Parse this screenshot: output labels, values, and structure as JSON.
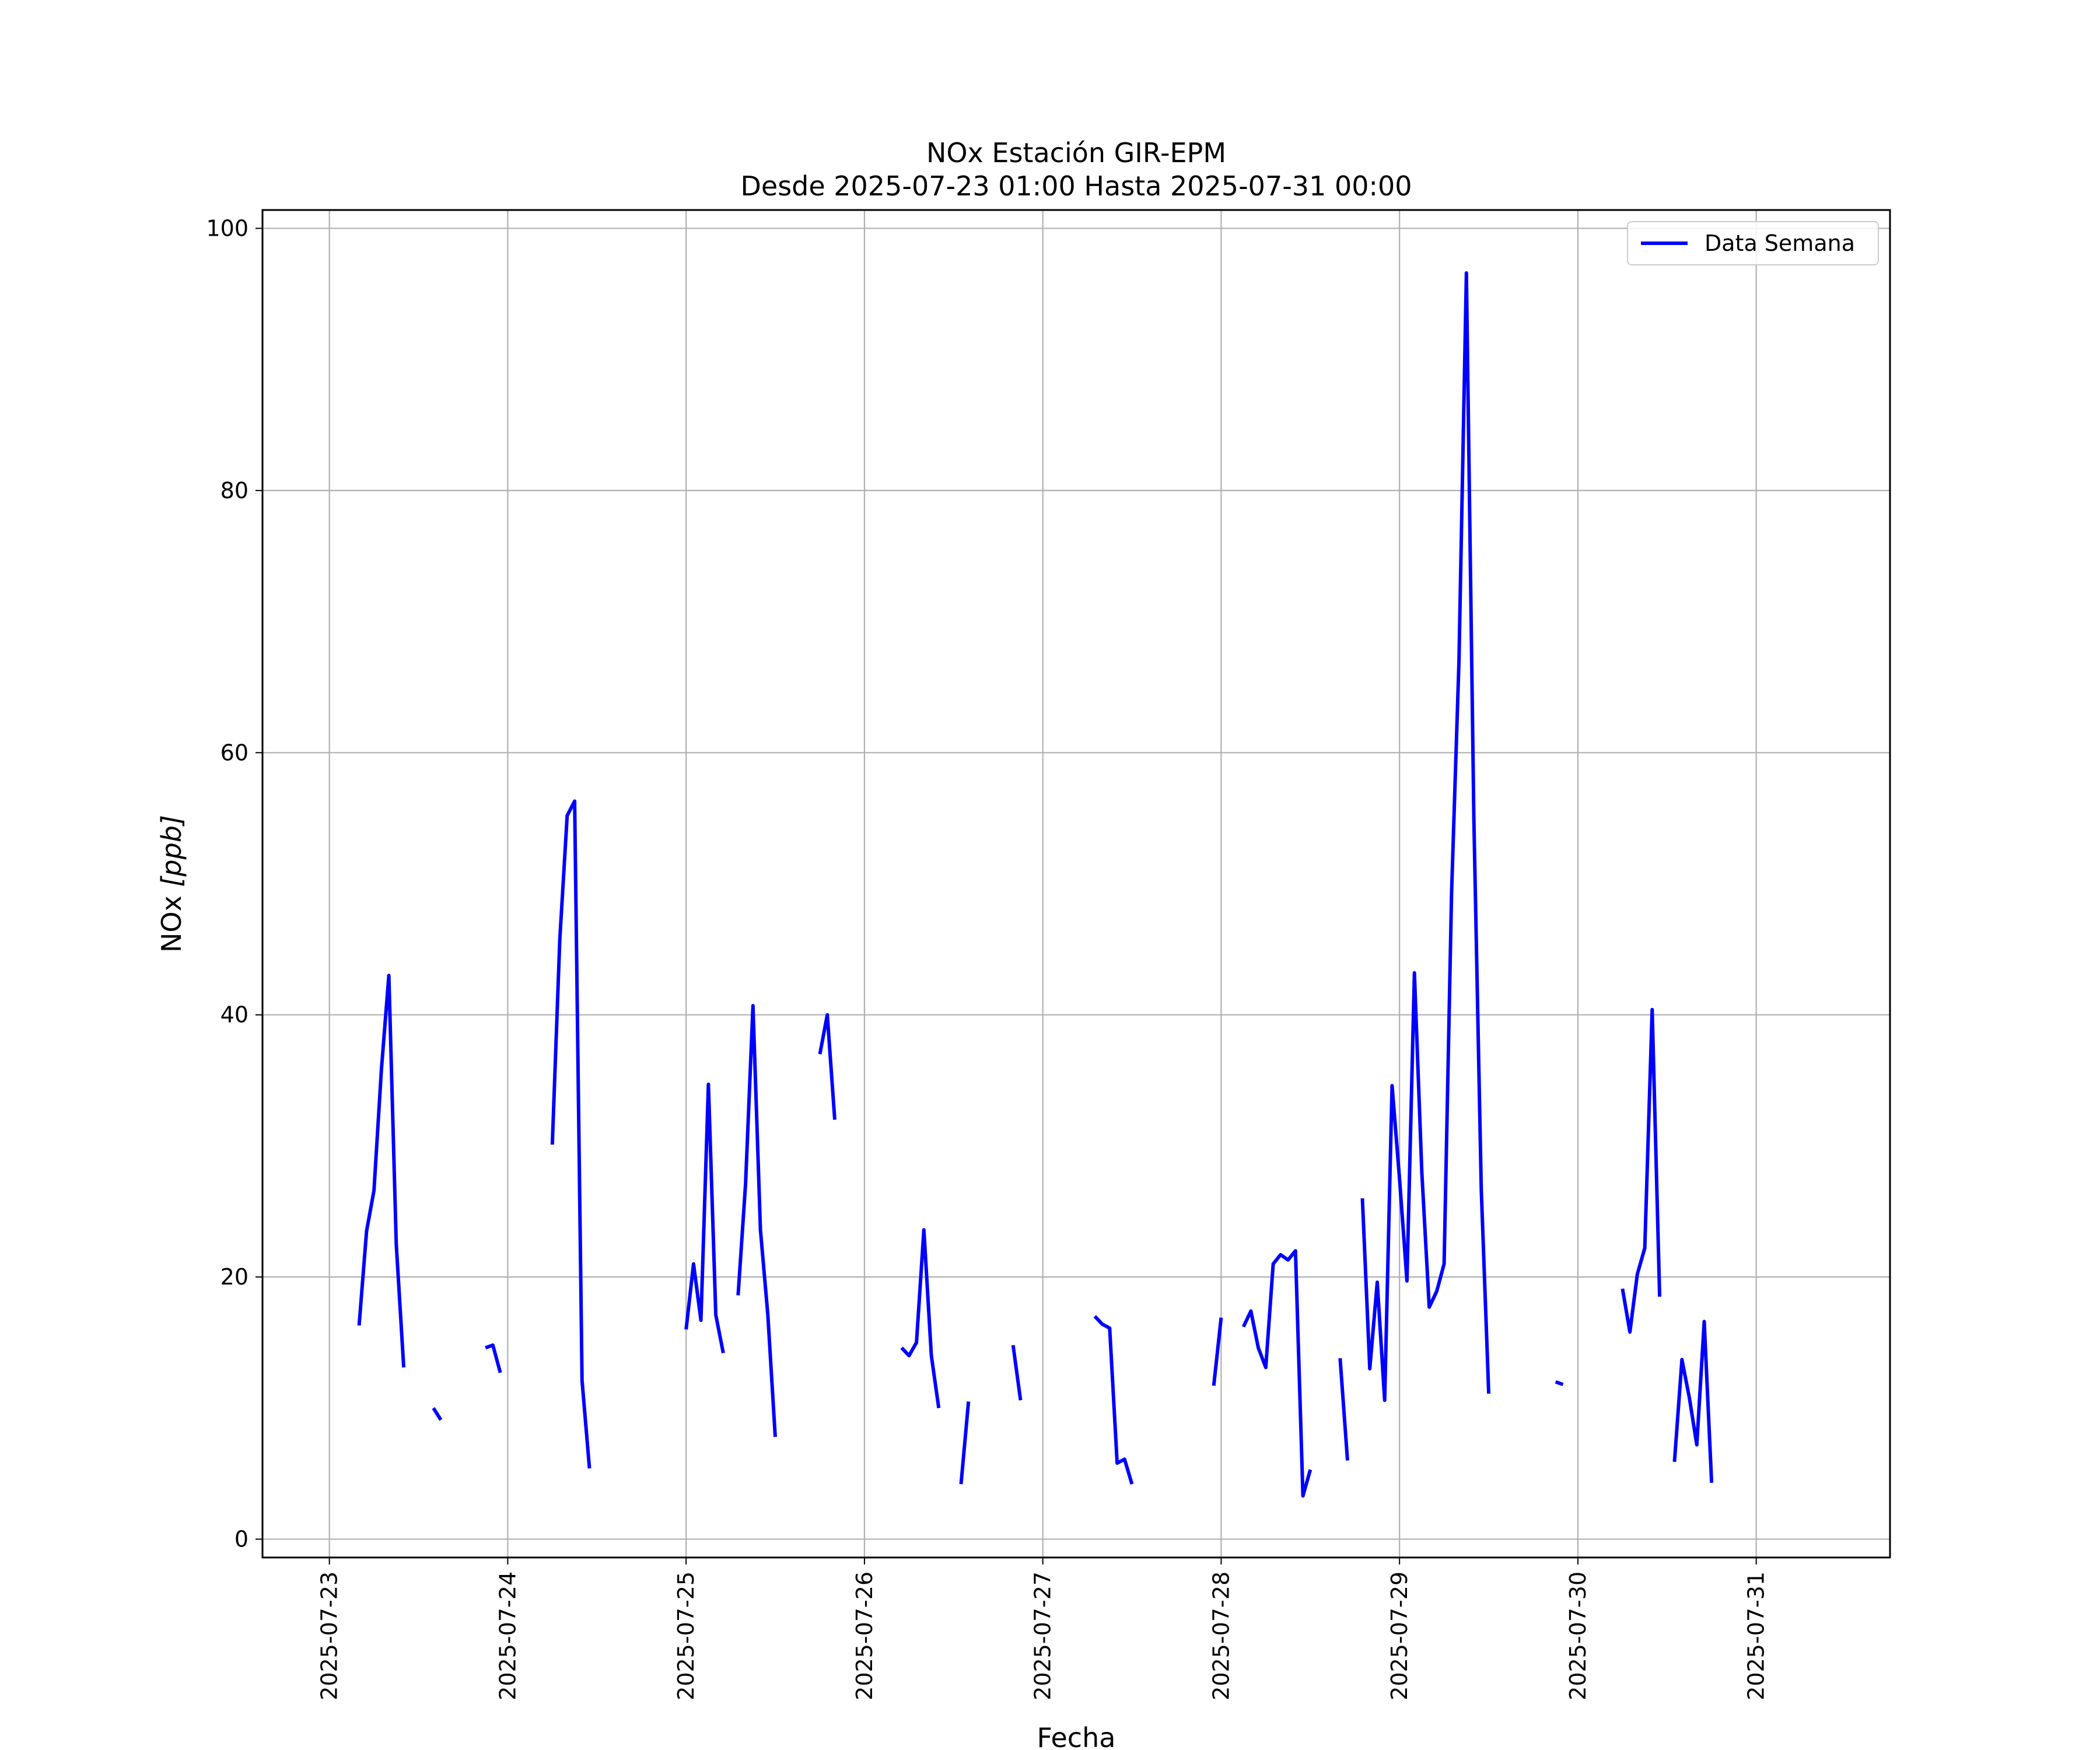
{
  "chart_data": {
    "type": "line",
    "title": "NOx Estación GIR-EPM",
    "subtitle": "Desde 2025-07-23 01:00 Hasta 2025-07-31 00:00",
    "xlabel": "Fecha",
    "ylabel": "NOx [ppb]",
    "ylabel_main": "NOx ",
    "ylabel_unit": "[ppb]",
    "x_axis": "date",
    "xlim": [
      "2025-07-22 15:00",
      "2025-07-31 18:00"
    ],
    "ylim": [
      -1.4,
      101.4
    ],
    "x_ticks": [
      "2025-07-23",
      "2025-07-24",
      "2025-07-25",
      "2025-07-26",
      "2025-07-27",
      "2025-07-28",
      "2025-07-29",
      "2025-07-30",
      "2025-07-31"
    ],
    "y_ticks": [
      "0",
      "20",
      "40",
      "60",
      "80",
      "100"
    ],
    "grid": true,
    "legend_position": "upper right",
    "series": [
      {
        "name": "Data Semana",
        "color": "#0000ff",
        "segments": [
          [
            [
              "2025-07-23 04:00",
              16.3
            ],
            [
              "2025-07-23 05:00",
              23.5
            ],
            [
              "2025-07-23 06:00",
              26.6
            ],
            [
              "2025-07-23 07:00",
              35.8
            ],
            [
              "2025-07-23 08:00",
              43.0
            ],
            [
              "2025-07-23 09:00",
              22.5
            ],
            [
              "2025-07-23 10:00",
              13.1
            ]
          ],
          [
            [
              "2025-07-23 14:00",
              10.0
            ],
            [
              "2025-07-23 15:00",
              9.1
            ]
          ],
          [
            [
              "2025-07-23 21:00",
              14.6
            ],
            [
              "2025-07-23 22:00",
              14.8
            ],
            [
              "2025-07-23 23:00",
              12.7
            ]
          ],
          [
            [
              "2025-07-24 06:00",
              30.1
            ],
            [
              "2025-07-24 07:00",
              45.7
            ],
            [
              "2025-07-24 08:00",
              55.2
            ],
            [
              "2025-07-24 09:00",
              56.3
            ],
            [
              "2025-07-24 10:00",
              12.1
            ],
            [
              "2025-07-24 11:00",
              5.4
            ]
          ],
          [
            [
              "2025-07-25 00:00",
              16.0
            ],
            [
              "2025-07-25 01:00",
              21.0
            ],
            [
              "2025-07-25 02:00",
              16.7
            ],
            [
              "2025-07-25 03:00",
              34.7
            ],
            [
              "2025-07-25 04:00",
              17.1
            ],
            [
              "2025-07-25 05:00",
              14.2
            ]
          ],
          [
            [
              "2025-07-25 07:00",
              18.6
            ],
            [
              "2025-07-25 08:00",
              27.1
            ],
            [
              "2025-07-25 09:00",
              40.7
            ],
            [
              "2025-07-25 10:00",
              23.6
            ],
            [
              "2025-07-25 11:00",
              17.1
            ],
            [
              "2025-07-25 12:00",
              7.8
            ]
          ],
          [
            [
              "2025-07-25 18:00",
              37.0
            ],
            [
              "2025-07-25 19:00",
              40.0
            ],
            [
              "2025-07-25 20:00",
              32.0
            ]
          ],
          [
            [
              "2025-07-26 05:00",
              14.6
            ],
            [
              "2025-07-26 06:00",
              14.0
            ],
            [
              "2025-07-26 07:00",
              15.0
            ],
            [
              "2025-07-26 08:00",
              23.6
            ],
            [
              "2025-07-26 09:00",
              14.0
            ],
            [
              "2025-07-26 10:00",
              10.0
            ]
          ],
          [
            [
              "2025-07-26 13:00",
              4.2
            ],
            [
              "2025-07-26 14:00",
              10.5
            ]
          ],
          [
            [
              "2025-07-26 20:00",
              14.8
            ],
            [
              "2025-07-26 21:00",
              10.6
            ]
          ],
          [
            [
              "2025-07-27 07:00",
              17.0
            ],
            [
              "2025-07-27 08:00",
              16.4
            ],
            [
              "2025-07-27 09:00",
              16.1
            ],
            [
              "2025-07-27 10:00",
              5.8
            ],
            [
              "2025-07-27 11:00",
              6.1
            ],
            [
              "2025-07-27 12:00",
              4.2
            ]
          ],
          [
            [
              "2025-07-27 23:00",
              11.7
            ],
            [
              "2025-07-28 00:00",
              16.9
            ]
          ],
          [
            [
              "2025-07-28 03:00",
              16.2
            ],
            [
              "2025-07-28 04:00",
              17.4
            ],
            [
              "2025-07-28 05:00",
              14.6
            ],
            [
              "2025-07-28 06:00",
              13.1
            ],
            [
              "2025-07-28 07:00",
              21.0
            ],
            [
              "2025-07-28 08:00",
              21.7
            ],
            [
              "2025-07-28 09:00",
              21.3
            ],
            [
              "2025-07-28 10:00",
              22.0
            ],
            [
              "2025-07-28 11:00",
              3.3
            ],
            [
              "2025-07-28 12:00",
              5.3
            ]
          ],
          [
            [
              "2025-07-28 16:00",
              13.8
            ],
            [
              "2025-07-28 17:00",
              6.0
            ]
          ],
          [
            [
              "2025-07-28 19:00",
              26.0
            ],
            [
              "2025-07-28 20:00",
              13.0
            ],
            [
              "2025-07-28 21:00",
              19.6
            ],
            [
              "2025-07-28 22:00",
              10.6
            ],
            [
              "2025-07-28 23:00",
              34.6
            ],
            [
              "2025-07-29 00:00",
              27.5
            ],
            [
              "2025-07-29 01:00",
              19.7
            ],
            [
              "2025-07-29 02:00",
              43.2
            ],
            [
              "2025-07-29 03:00",
              28.0
            ],
            [
              "2025-07-29 04:00",
              17.7
            ],
            [
              "2025-07-29 05:00",
              18.9
            ],
            [
              "2025-07-29 06:00",
              21.0
            ],
            [
              "2025-07-29 07:00",
              49.3
            ],
            [
              "2025-07-29 08:00",
              67.0
            ],
            [
              "2025-07-29 09:00",
              96.6
            ],
            [
              "2025-07-29 10:00",
              55.0
            ],
            [
              "2025-07-29 11:00",
              26.7
            ],
            [
              "2025-07-29 12:00",
              11.1
            ]
          ],
          [
            [
              "2025-07-29 21:00",
              12.0
            ],
            [
              "2025-07-29 22:00",
              11.8
            ]
          ],
          [
            [
              "2025-07-30 06:00",
              19.1
            ],
            [
              "2025-07-30 07:00",
              15.8
            ],
            [
              "2025-07-30 08:00",
              20.2
            ],
            [
              "2025-07-30 09:00",
              22.2
            ],
            [
              "2025-07-30 10:00",
              40.4
            ],
            [
              "2025-07-30 11:00",
              18.5
            ]
          ],
          [
            [
              "2025-07-30 13:00",
              5.9
            ],
            [
              "2025-07-30 14:00",
              13.7
            ],
            [
              "2025-07-30 15:00",
              10.8
            ],
            [
              "2025-07-30 16:00",
              7.2
            ],
            [
              "2025-07-30 17:00",
              16.6
            ],
            [
              "2025-07-30 18:00",
              4.3
            ]
          ]
        ]
      }
    ]
  }
}
